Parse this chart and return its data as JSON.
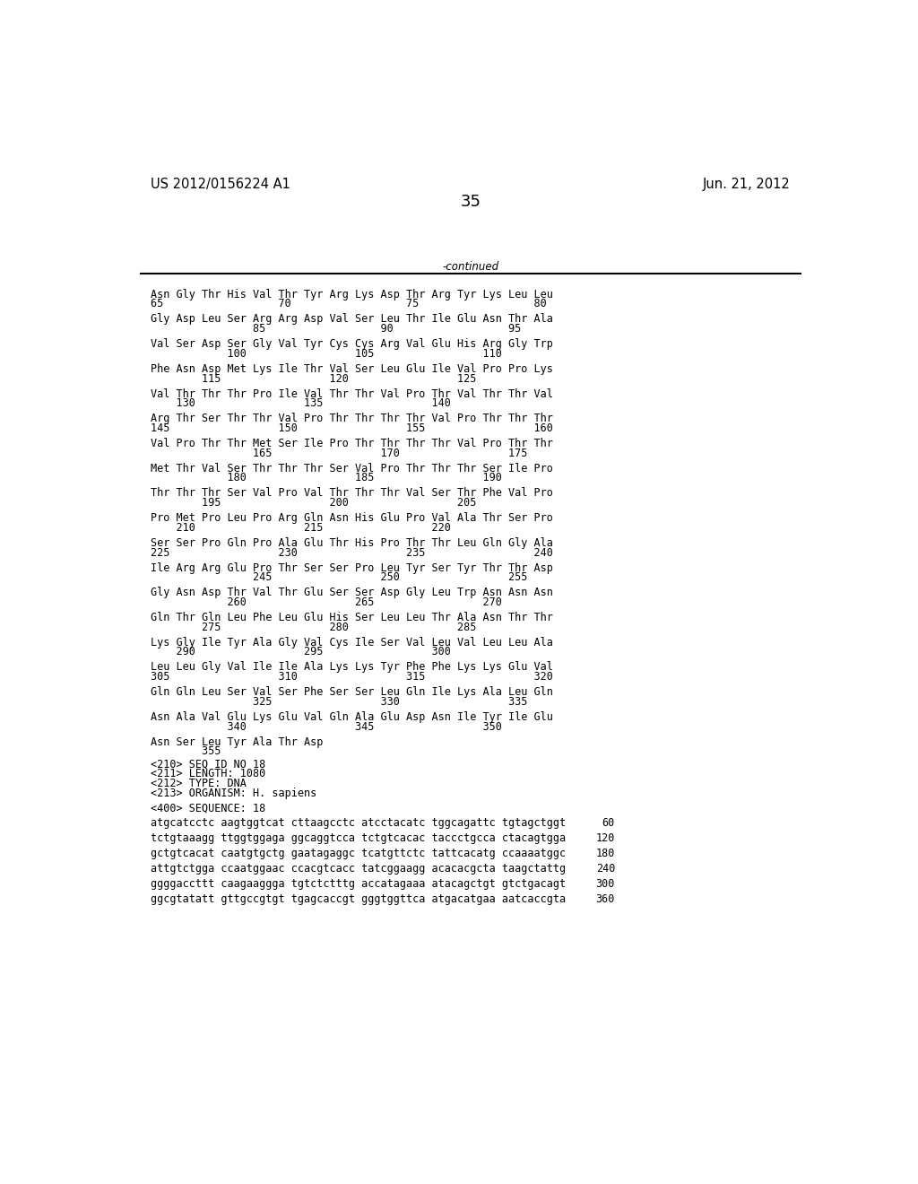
{
  "header_left": "US 2012/0156224 A1",
  "header_right": "Jun. 21, 2012",
  "page_number": "35",
  "continued_label": "-continued",
  "background_color": "#ffffff",
  "text_color": "#000000",
  "font_size_header": 10.5,
  "font_size_page": 13,
  "font_size_body": 8.5,
  "sequence_blocks": [
    [
      "Asn Gly Thr His Val Thr Tyr Arg Lys Asp Thr Arg Tyr Lys Leu Leu",
      "65                  70                  75                  80"
    ],
    [
      "Gly Asp Leu Ser Arg Arg Asp Val Ser Leu Thr Ile Glu Asn Thr Ala",
      "                85                  90                  95"
    ],
    [
      "Val Ser Asp Ser Gly Val Tyr Cys Cys Arg Val Glu His Arg Gly Trp",
      "            100                 105                 110"
    ],
    [
      "Phe Asn Asp Met Lys Ile Thr Val Ser Leu Glu Ile Val Pro Pro Lys",
      "        115                 120                 125"
    ],
    [
      "Val Thr Thr Thr Pro Ile Val Thr Thr Val Pro Thr Val Thr Thr Val",
      "    130                 135                 140"
    ],
    [
      "Arg Thr Ser Thr Thr Val Pro Thr Thr Thr Thr Val Pro Thr Thr Thr",
      "145                 150                 155                 160"
    ],
    [
      "Val Pro Thr Thr Met Ser Ile Pro Thr Thr Thr Thr Val Pro Thr Thr",
      "                165                 170                 175"
    ],
    [
      "Met Thr Val Ser Thr Thr Thr Ser Val Pro Thr Thr Thr Ser Ile Pro",
      "            180                 185                 190"
    ],
    [
      "Thr Thr Thr Ser Val Pro Val Thr Thr Thr Val Ser Thr Phe Val Pro",
      "        195                 200                 205"
    ],
    [
      "Pro Met Pro Leu Pro Arg Gln Asn His Glu Pro Val Ala Thr Ser Pro",
      "    210                 215                 220"
    ],
    [
      "Ser Ser Pro Gln Pro Ala Glu Thr His Pro Thr Thr Leu Gln Gly Ala",
      "225                 230                 235                 240"
    ],
    [
      "Ile Arg Arg Glu Pro Thr Ser Ser Pro Leu Tyr Ser Tyr Thr Thr Asp",
      "                245                 250                 255"
    ],
    [
      "Gly Asn Asp Thr Val Thr Glu Ser Ser Asp Gly Leu Trp Asn Asn Asn",
      "            260                 265                 270"
    ],
    [
      "Gln Thr Gln Leu Phe Leu Glu His Ser Leu Leu Thr Ala Asn Thr Thr",
      "        275                 280                 285"
    ],
    [
      "Lys Gly Ile Tyr Ala Gly Val Cys Ile Ser Val Leu Val Leu Leu Ala",
      "    290                 295                 300"
    ],
    [
      "Leu Leu Gly Val Ile Ile Ala Lys Lys Tyr Phe Phe Lys Lys Glu Val",
      "305                 310                 315                 320"
    ],
    [
      "Gln Gln Leu Ser Val Ser Phe Ser Ser Leu Gln Ile Lys Ala Leu Gln",
      "                325                 330                 335"
    ],
    [
      "Asn Ala Val Glu Lys Glu Val Gln Ala Glu Asp Asn Ile Tyr Ile Glu",
      "            340                 345                 350"
    ],
    [
      "Asn Ser Leu Tyr Ala Thr Asp",
      "        355"
    ]
  ],
  "metadata_lines": [
    "<210> SEQ ID NO 18",
    "<211> LENGTH: 1080",
    "<212> TYPE: DNA",
    "<213> ORGANISM: H. sapiens"
  ],
  "seq400": "<400> SEQUENCE: 18",
  "dna_lines": [
    [
      "atgcatcctc aagtggtcat cttaagcctc atcctacatc tggcagattc tgtagctggt",
      "60"
    ],
    [
      "tctgtaaagg ttggtggaga ggcaggtcca tctgtcacac taccctgcca ctacagtgga",
      "120"
    ],
    [
      "gctgtcacat caatgtgctg gaatagaggc tcatgttctc tattcacatg ccaaaatggc",
      "180"
    ],
    [
      "attgtctgga ccaatggaac ccacgtcacc tatcggaagg acacacgcta taagctattg",
      "240"
    ],
    [
      "ggggaccttt caagaaggga tgtctctttg accatagaaa atacagctgt gtctgacagt",
      "300"
    ],
    [
      "ggcgtatatt gttgccgtgt tgagcaccgt gggtggttca atgacatgaa aatcaccgta",
      "360"
    ]
  ]
}
